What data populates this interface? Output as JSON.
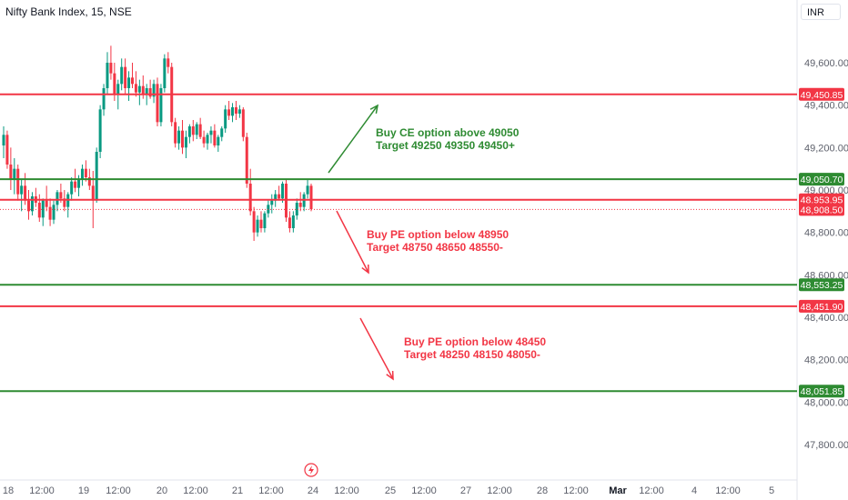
{
  "header": {
    "symbol": "Nifty Bank Index, 15, NSE",
    "currency": "INR"
  },
  "colors": {
    "up": "#089981",
    "down": "#f23645",
    "green_line": "#2e8b32",
    "red_line": "#f23645",
    "text": "#131722",
    "axis_text": "#5d606b"
  },
  "chart_data": {
    "type": "candlestick",
    "title": "Nifty Bank Index, 15, NSE",
    "ylim": [
      47700,
      49820
    ],
    "y_ticks": [
      49600,
      49400,
      49200,
      49000,
      48800,
      48600,
      48400,
      48200,
      48000,
      47800
    ],
    "y_tick_labels": [
      "49,600.00",
      "49,400.00",
      "49,200.00",
      "49,000.00",
      "48,800.00",
      "48,600.00",
      "48,400.00",
      "48,200.00",
      "48,000.00",
      "47,800.00"
    ],
    "x_tick_labels": [
      "18",
      "12:00",
      "19",
      "12:00",
      "20",
      "12:00",
      "21",
      "12:00",
      "24",
      "12:00",
      "25",
      "12:00",
      "27",
      "12:00",
      "28",
      "12:00",
      "Mar",
      "12:00",
      "4",
      "12:00",
      "5"
    ],
    "bold_x_ticks": [
      "Mar"
    ],
    "levels": [
      {
        "value": 49450.85,
        "label": "49,450.85",
        "color": "red"
      },
      {
        "value": 49050.7,
        "label": "49,050.70",
        "color": "green"
      },
      {
        "value": 48953.95,
        "label": "48,953.95",
        "color": "red"
      },
      {
        "value": 48908.5,
        "label": "48,908.50",
        "color": "red",
        "dotted": true
      },
      {
        "value": 48553.25,
        "label": "48,553.25",
        "color": "green"
      },
      {
        "value": 48451.9,
        "label": "48,451.90",
        "color": "red"
      },
      {
        "value": 48051.85,
        "label": "48,051.85",
        "color": "green"
      }
    ],
    "annotations": [
      {
        "line1": "Buy CE option above 49050",
        "line2": "Target 49250 49350 49450+",
        "color": "green"
      },
      {
        "line1": "Buy PE option below 48950",
        "line2": "Target 48750 48650 48550-",
        "color": "red"
      },
      {
        "line1": "Buy PE option below 48450",
        "line2": "Target 48250 48150 48050-",
        "color": "red"
      }
    ],
    "candles_ohlc": [
      [
        49210,
        49300,
        49150,
        49260
      ],
      [
        49260,
        49280,
        49100,
        49120
      ],
      [
        49120,
        49200,
        49000,
        49050
      ],
      [
        49050,
        49150,
        48980,
        49100
      ],
      [
        49100,
        49120,
        48950,
        48980
      ],
      [
        48980,
        49050,
        48900,
        49020
      ],
      [
        49020,
        49080,
        48930,
        48950
      ],
      [
        48950,
        49000,
        48860,
        48900
      ],
      [
        48900,
        48990,
        48880,
        48970
      ],
      [
        48970,
        49010,
        48920,
        48940
      ],
      [
        48940,
        48980,
        48850,
        48870
      ],
      [
        48870,
        48960,
        48830,
        48950
      ],
      [
        48950,
        49020,
        48900,
        48920
      ],
      [
        48920,
        48960,
        48830,
        48860
      ],
      [
        48860,
        48950,
        48840,
        48930
      ],
      [
        48930,
        49000,
        48900,
        48990
      ],
      [
        48990,
        49030,
        48940,
        48960
      ],
      [
        48960,
        49000,
        48900,
        48920
      ],
      [
        48920,
        48990,
        48870,
        48980
      ],
      [
        48980,
        49060,
        48950,
        49040
      ],
      [
        49040,
        49100,
        48990,
        49010
      ],
      [
        49010,
        49070,
        48970,
        49050
      ],
      [
        49050,
        49120,
        49020,
        49100
      ],
      [
        49100,
        49140,
        49040,
        49060
      ],
      [
        49060,
        49100,
        49000,
        49020
      ],
      [
        49020,
        49090,
        48820,
        48950
      ],
      [
        48950,
        49200,
        48940,
        49180
      ],
      [
        49180,
        49400,
        49150,
        49380
      ],
      [
        49380,
        49500,
        49350,
        49480
      ],
      [
        49480,
        49650,
        49450,
        49600
      ],
      [
        49600,
        49680,
        49520,
        49550
      ],
      [
        49550,
        49600,
        49420,
        49450
      ],
      [
        49450,
        49520,
        49380,
        49500
      ],
      [
        49500,
        49620,
        49470,
        49580
      ],
      [
        49580,
        49620,
        49450,
        49480
      ],
      [
        49480,
        49560,
        49420,
        49530
      ],
      [
        49530,
        49600,
        49480,
        49500
      ],
      [
        49500,
        49560,
        49440,
        49460
      ],
      [
        49460,
        49520,
        49400,
        49490
      ],
      [
        49490,
        49540,
        49430,
        49450
      ],
      [
        49450,
        49500,
        49400,
        49480
      ],
      [
        49480,
        49520,
        49430,
        49440
      ],
      [
        49440,
        49520,
        49410,
        49500
      ],
      [
        49500,
        49530,
        49300,
        49320
      ],
      [
        49320,
        49500,
        49300,
        49480
      ],
      [
        49480,
        49640,
        49460,
        49620
      ],
      [
        49620,
        49650,
        49550,
        49580
      ],
      [
        49580,
        49600,
        49300,
        49320
      ],
      [
        49320,
        49340,
        49200,
        49220
      ],
      [
        49220,
        49300,
        49190,
        49280
      ],
      [
        49280,
        49330,
        49170,
        49200
      ],
      [
        49200,
        49280,
        49150,
        49250
      ],
      [
        49250,
        49310,
        49220,
        49300
      ],
      [
        49300,
        49330,
        49230,
        49260
      ],
      [
        49260,
        49320,
        49240,
        49310
      ],
      [
        49310,
        49340,
        49240,
        49250
      ],
      [
        49250,
        49280,
        49200,
        49220
      ],
      [
        49220,
        49270,
        49190,
        49260
      ],
      [
        49260,
        49300,
        49220,
        49280
      ],
      [
        49280,
        49310,
        49200,
        49210
      ],
      [
        49210,
        49260,
        49180,
        49250
      ],
      [
        49250,
        49300,
        49230,
        49290
      ],
      [
        49290,
        49400,
        49270,
        49380
      ],
      [
        49380,
        49420,
        49330,
        49350
      ],
      [
        49350,
        49410,
        49320,
        49390
      ],
      [
        49390,
        49420,
        49330,
        49360
      ],
      [
        49360,
        49400,
        49340,
        49380
      ],
      [
        49380,
        49390,
        49230,
        49250
      ],
      [
        49250,
        49270,
        49010,
        49030
      ],
      [
        49030,
        49100,
        48880,
        48900
      ],
      [
        48900,
        48920,
        48760,
        48800
      ],
      [
        48800,
        48880,
        48780,
        48860
      ],
      [
        48860,
        48900,
        48800,
        48820
      ],
      [
        48820,
        48900,
        48800,
        48890
      ],
      [
        48890,
        48950,
        48870,
        48930
      ],
      [
        48930,
        48980,
        48890,
        48950
      ],
      [
        48950,
        49000,
        48920,
        48980
      ],
      [
        48980,
        49020,
        48950,
        48960
      ],
      [
        48960,
        49040,
        48940,
        49030
      ],
      [
        49030,
        49050,
        48850,
        48870
      ],
      [
        48870,
        48900,
        48800,
        48820
      ],
      [
        48820,
        48900,
        48800,
        48880
      ],
      [
        48880,
        48960,
        48860,
        48940
      ],
      [
        48940,
        48990,
        48900,
        48920
      ],
      [
        48920,
        48990,
        48900,
        48980
      ],
      [
        48980,
        49050,
        48960,
        49020
      ],
      [
        49020,
        49030,
        48900,
        48910
      ]
    ]
  }
}
